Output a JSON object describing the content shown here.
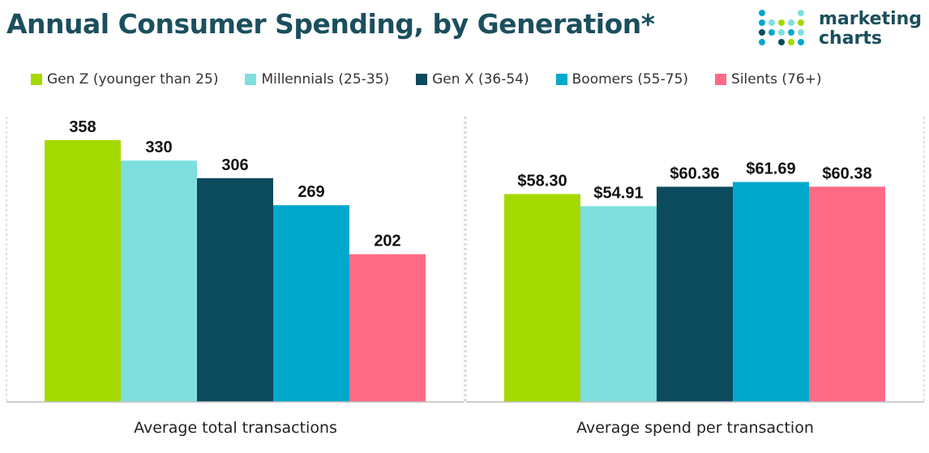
{
  "chart_data": [
    {
      "type": "bar",
      "title": "Annual Consumer Spending, by Generation*",
      "xlabel": "Average total transactions",
      "categories": [
        "Gen Z (younger than 25)",
        "Millennials (25-35)",
        "Gen X (36-54)",
        "Boomers (55-75)",
        "Silents (76+)"
      ],
      "values": [
        358,
        330,
        306,
        269,
        202
      ],
      "data_labels": [
        "358",
        "330",
        "306",
        "269",
        "202"
      ],
      "ylim": [
        0,
        390
      ]
    },
    {
      "type": "bar",
      "title": "Annual Consumer Spending, by Generation*",
      "xlabel": "Average spend per transaction",
      "categories": [
        "Gen Z (younger than 25)",
        "Millennials (25-35)",
        "Gen X (36-54)",
        "Boomers (55-75)",
        "Silents (76+)"
      ],
      "values": [
        58.3,
        54.91,
        60.36,
        61.69,
        60.38
      ],
      "data_labels": [
        "$58.30",
        "$54.91",
        "$60.36",
        "$61.69",
        "$60.38"
      ],
      "ylim": [
        0,
        80
      ]
    }
  ],
  "header": {
    "title": "Annual Consumer Spending, by Generation*"
  },
  "logo": {
    "line1": "marketing",
    "line2": "charts"
  },
  "legend": [
    {
      "label": "Gen Z (younger than 25)",
      "color": "#a4d900"
    },
    {
      "label": "Millennials (25-35)",
      "color": "#7fdfdf"
    },
    {
      "label": "Gen X (36-54)",
      "color": "#0c4a5e"
    },
    {
      "label": "Boomers (55-75)",
      "color": "#00a8cc"
    },
    {
      "label": "Silents (76+)",
      "color": "#ff6b87"
    }
  ],
  "colors": {
    "title": "#1b4f5e",
    "axis": "#bfbfbf",
    "logo_dots": [
      "#7fdfdf",
      "#00a8cc",
      "#a4d900",
      "#0c4a5e"
    ]
  }
}
